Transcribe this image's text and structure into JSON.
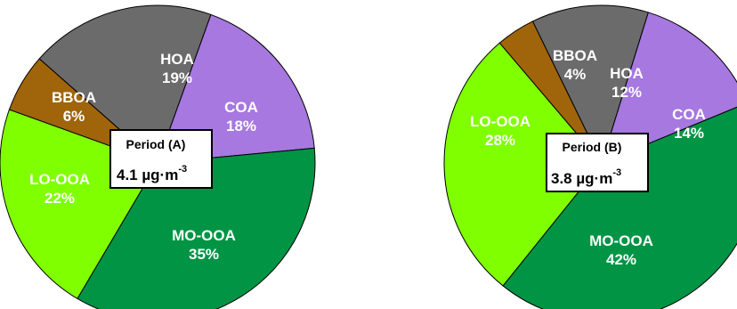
{
  "colors": {
    "HOA": "#6b6b6b",
    "COA": "#a678e0",
    "MO-OOA": "#009444",
    "LO-OOA": "#80ff00",
    "BBOA": "#a0640a"
  },
  "chart_data": [
    {
      "type": "pie",
      "title": "Period (A)",
      "total": "4.1 µg·m",
      "total_exponent": "-3",
      "slices": [
        {
          "label": "HOA",
          "value": 19,
          "text": "19%"
        },
        {
          "label": "COA",
          "value": 18,
          "text": "18%"
        },
        {
          "label": "MO-OOA",
          "value": 35,
          "text": "35%"
        },
        {
          "label": "LO-OOA",
          "value": 22,
          "text": "22%"
        },
        {
          "label": "BBOA",
          "value": 6,
          "text": "6%"
        }
      ]
    },
    {
      "type": "pie",
      "title": "Period (B)",
      "total": "3.8 µg·m",
      "total_exponent": "-3",
      "slices": [
        {
          "label": "HOA",
          "value": 12,
          "text": "12%"
        },
        {
          "label": "COA",
          "value": 14,
          "text": "14%"
        },
        {
          "label": "MO-OOA",
          "value": 42,
          "text": "42%"
        },
        {
          "label": "LO-OOA",
          "value": 28,
          "text": "28%"
        },
        {
          "label": "BBOA",
          "value": 4,
          "text": "4%"
        }
      ]
    }
  ]
}
